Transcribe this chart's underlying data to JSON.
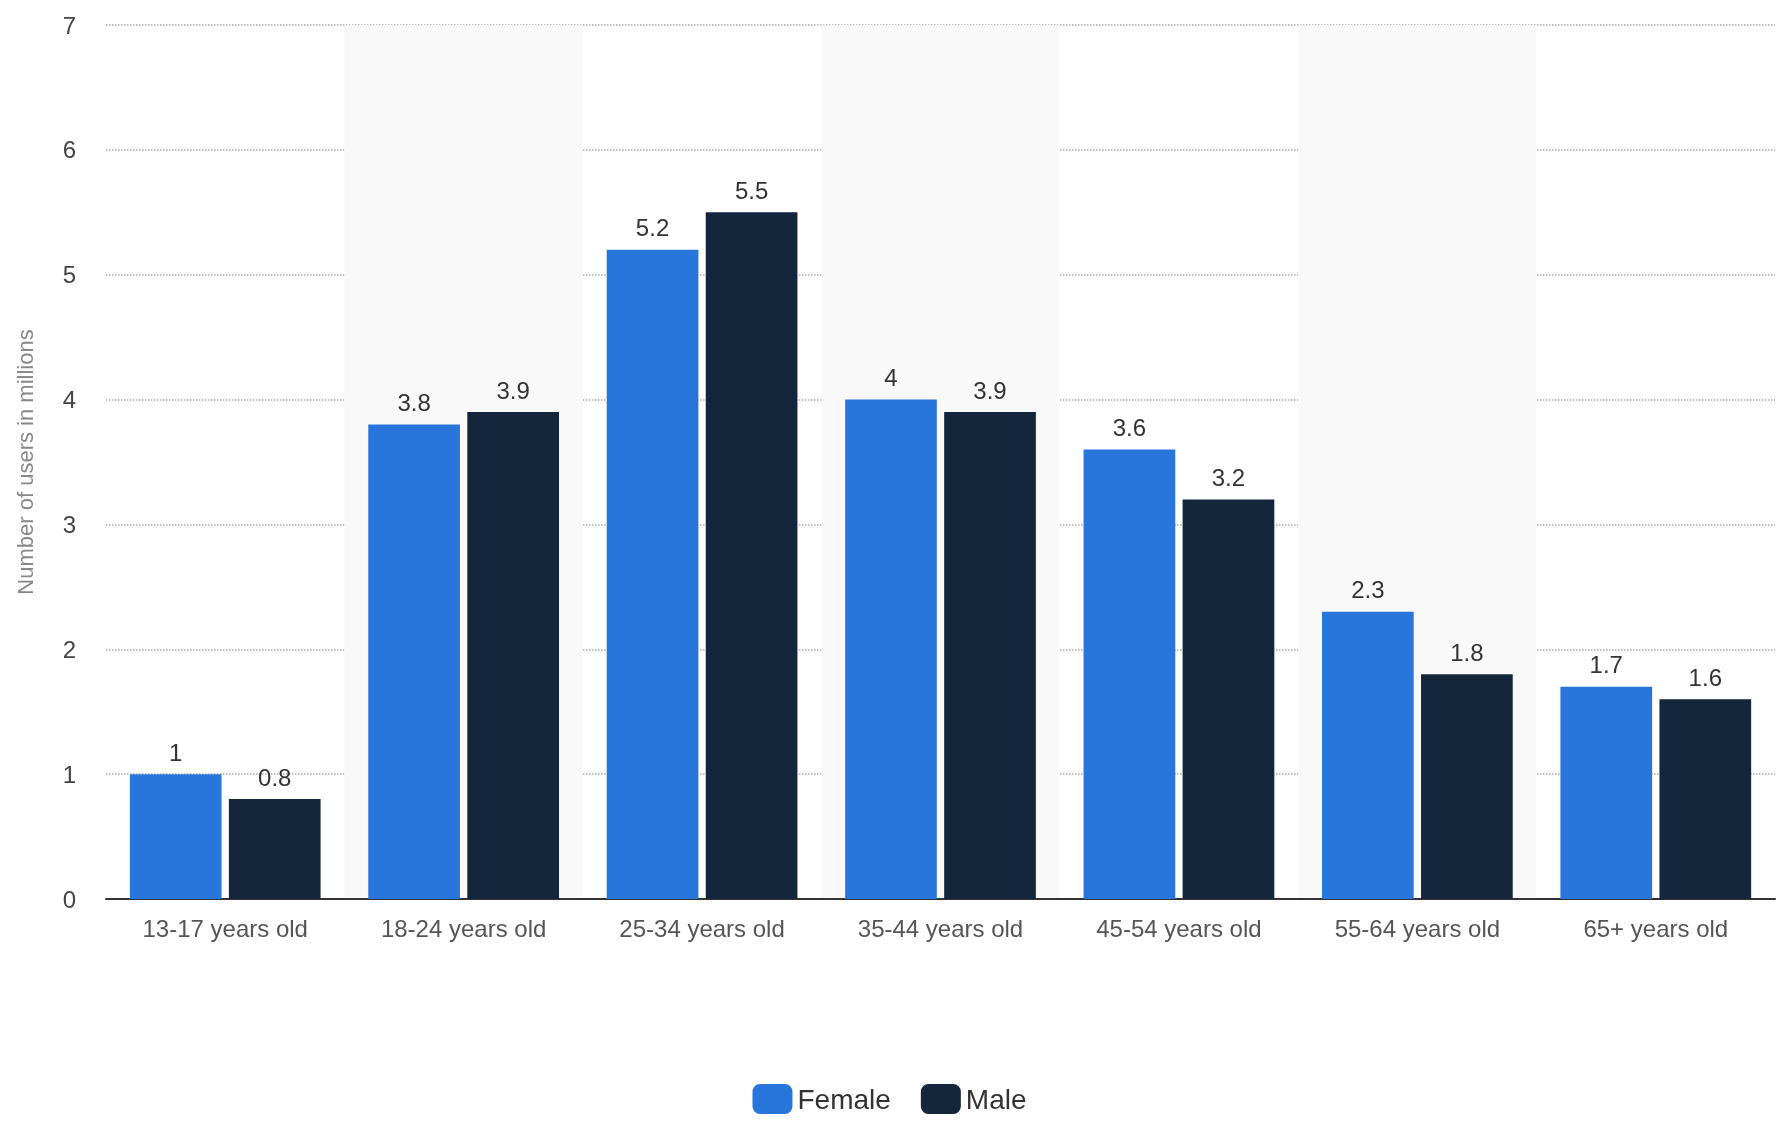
{
  "chart_data": {
    "type": "bar",
    "ylabel": "Number of users in millions",
    "categories": [
      "13-17 years old",
      "18-24 years old",
      "25-34 years old",
      "35-44 years old",
      "45-54 years old",
      "55-64 years old",
      "65+ years old"
    ],
    "series": [
      {
        "name": "Female",
        "color": "#2876dc",
        "values": [
          1,
          3.8,
          5.2,
          4,
          3.6,
          2.3,
          1.7
        ]
      },
      {
        "name": "Male",
        "color": "#13263c",
        "values": [
          0.8,
          3.9,
          5.5,
          3.9,
          3.2,
          1.8,
          1.6
        ]
      }
    ],
    "ylim": [
      0,
      7
    ],
    "yticks": [
      0,
      1,
      2,
      3,
      4,
      5,
      6,
      7
    ],
    "grid": "y",
    "legend": "bottom",
    "data_labels": true
  }
}
